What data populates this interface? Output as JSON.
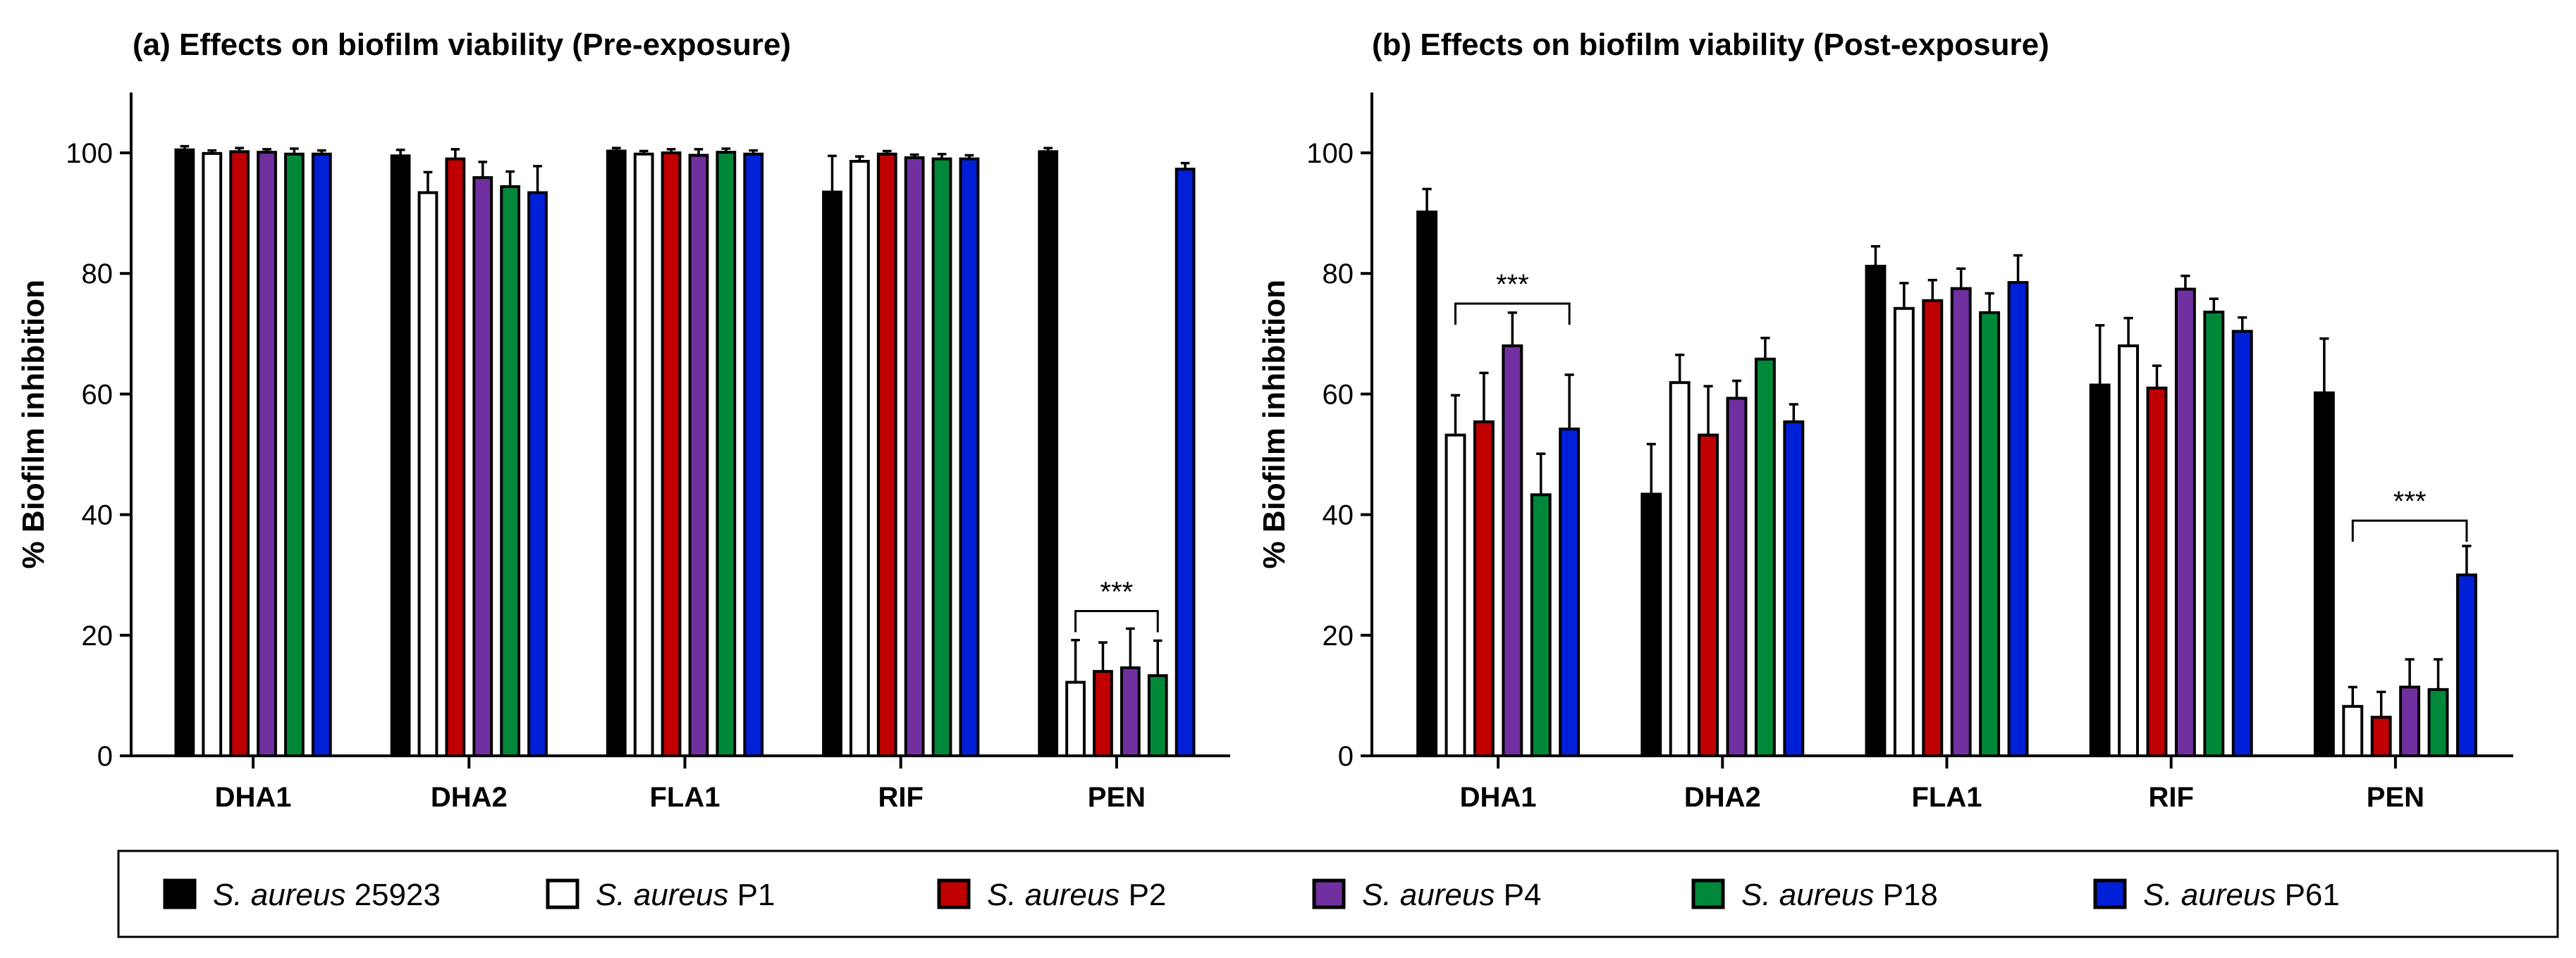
{
  "chart_data": [
    {
      "type": "bar",
      "title": "(a) Effects on biofilm viability (Pre-exposure)",
      "xlabel": "",
      "ylabel": "% Biofilm inhibition",
      "ylim": [
        0,
        110
      ],
      "yticks": [
        0,
        20,
        40,
        60,
        80,
        100
      ],
      "categories": [
        "DHA1",
        "DHA2",
        "FLA1",
        "RIF",
        "PEN"
      ],
      "series": [
        {
          "name": "S. aureus 25923",
          "values": [
            100.5,
            99.5,
            100.3,
            93.5,
            100.2
          ],
          "errors": [
            0.6,
            1.0,
            0.5,
            6.0,
            0.6
          ]
        },
        {
          "name": "S. aureus P1",
          "values": [
            99.9,
            93.4,
            99.8,
            98.6,
            12.2
          ],
          "errors": [
            0.5,
            3.4,
            0.5,
            0.8,
            7.0
          ]
        },
        {
          "name": "S. aureus P2",
          "values": [
            100.2,
            99.0,
            100.0,
            99.8,
            14.0
          ],
          "errors": [
            0.6,
            1.6,
            0.6,
            0.5,
            4.8
          ]
        },
        {
          "name": "S. aureus P4",
          "values": [
            100.1,
            95.9,
            99.6,
            99.2,
            14.6
          ],
          "errors": [
            0.5,
            2.6,
            1.0,
            0.5,
            6.5
          ]
        },
        {
          "name": "S. aureus P18",
          "values": [
            99.8,
            94.4,
            100.1,
            99.0,
            13.3
          ],
          "errors": [
            0.9,
            2.5,
            0.6,
            0.8,
            5.8
          ]
        },
        {
          "name": "S. aureus P61",
          "values": [
            99.8,
            93.4,
            99.8,
            99.0,
            97.3
          ],
          "errors": [
            0.6,
            4.4,
            0.6,
            0.6,
            1.0
          ]
        }
      ],
      "significance": [
        {
          "label": "***",
          "category": "PEN",
          "from_series": 1,
          "to_series": 4,
          "level": 24
        }
      ]
    },
    {
      "type": "bar",
      "title": "(b) Effects on biofilm viability (Post-exposure)",
      "xlabel": "",
      "ylabel": "% Biofilm inhibition",
      "ylim": [
        0,
        110
      ],
      "yticks": [
        0,
        20,
        40,
        60,
        80,
        100
      ],
      "categories": [
        "DHA1",
        "DHA2",
        "FLA1",
        "RIF",
        "PEN"
      ],
      "series": [
        {
          "name": "S. aureus 25923",
          "values": [
            90.2,
            43.4,
            81.2,
            61.5,
            60.2
          ],
          "errors": [
            3.8,
            8.3,
            3.3,
            9.9,
            9.0
          ]
        },
        {
          "name": "S. aureus P1",
          "values": [
            53.2,
            61.9,
            74.2,
            68.0,
            8.2
          ],
          "errors": [
            6.6,
            4.6,
            4.2,
            4.6,
            3.2
          ]
        },
        {
          "name": "S. aureus P2",
          "values": [
            55.4,
            53.2,
            75.5,
            61.0,
            6.4
          ],
          "errors": [
            8.1,
            8.1,
            3.4,
            3.7,
            4.2
          ]
        },
        {
          "name": "S. aureus P4",
          "values": [
            68.0,
            59.3,
            77.5,
            77.4,
            11.4
          ],
          "errors": [
            5.5,
            2.9,
            3.3,
            2.2,
            4.6
          ]
        },
        {
          "name": "S. aureus P18",
          "values": [
            43.3,
            65.8,
            73.5,
            73.6,
            11.0
          ],
          "errors": [
            6.8,
            3.5,
            3.2,
            2.2,
            5.0
          ]
        },
        {
          "name": "S. aureus P61",
          "values": [
            54.2,
            55.4,
            78.5,
            70.4,
            30.0
          ],
          "errors": [
            9.0,
            2.9,
            4.5,
            2.3,
            4.8
          ]
        }
      ],
      "significance": [
        {
          "label": "***",
          "category": "DHA1",
          "from_series": 1,
          "to_series": 5,
          "level": 75
        },
        {
          "label": "***",
          "category": "PEN",
          "from_series": 1,
          "to_series": 5,
          "level": 39
        }
      ]
    }
  ],
  "legend": {
    "items": [
      {
        "italic": "S. aureus",
        "suffix": " 25923"
      },
      {
        "italic": "S. aureus",
        "suffix": " P1"
      },
      {
        "italic": "S. aureus",
        "suffix": " P2"
      },
      {
        "italic": "S. aureus",
        "suffix": " P4"
      },
      {
        "italic": "S. aureus",
        "suffix": " P18"
      },
      {
        "italic": "S. aureus",
        "suffix": " P61"
      }
    ]
  },
  "colors": {
    "series": [
      "#000000",
      "#ffffff",
      "#c00000",
      "#7030a0",
      "#00883a",
      "#0020d8"
    ],
    "axis": "#000000",
    "legend_border": "#000000"
  }
}
